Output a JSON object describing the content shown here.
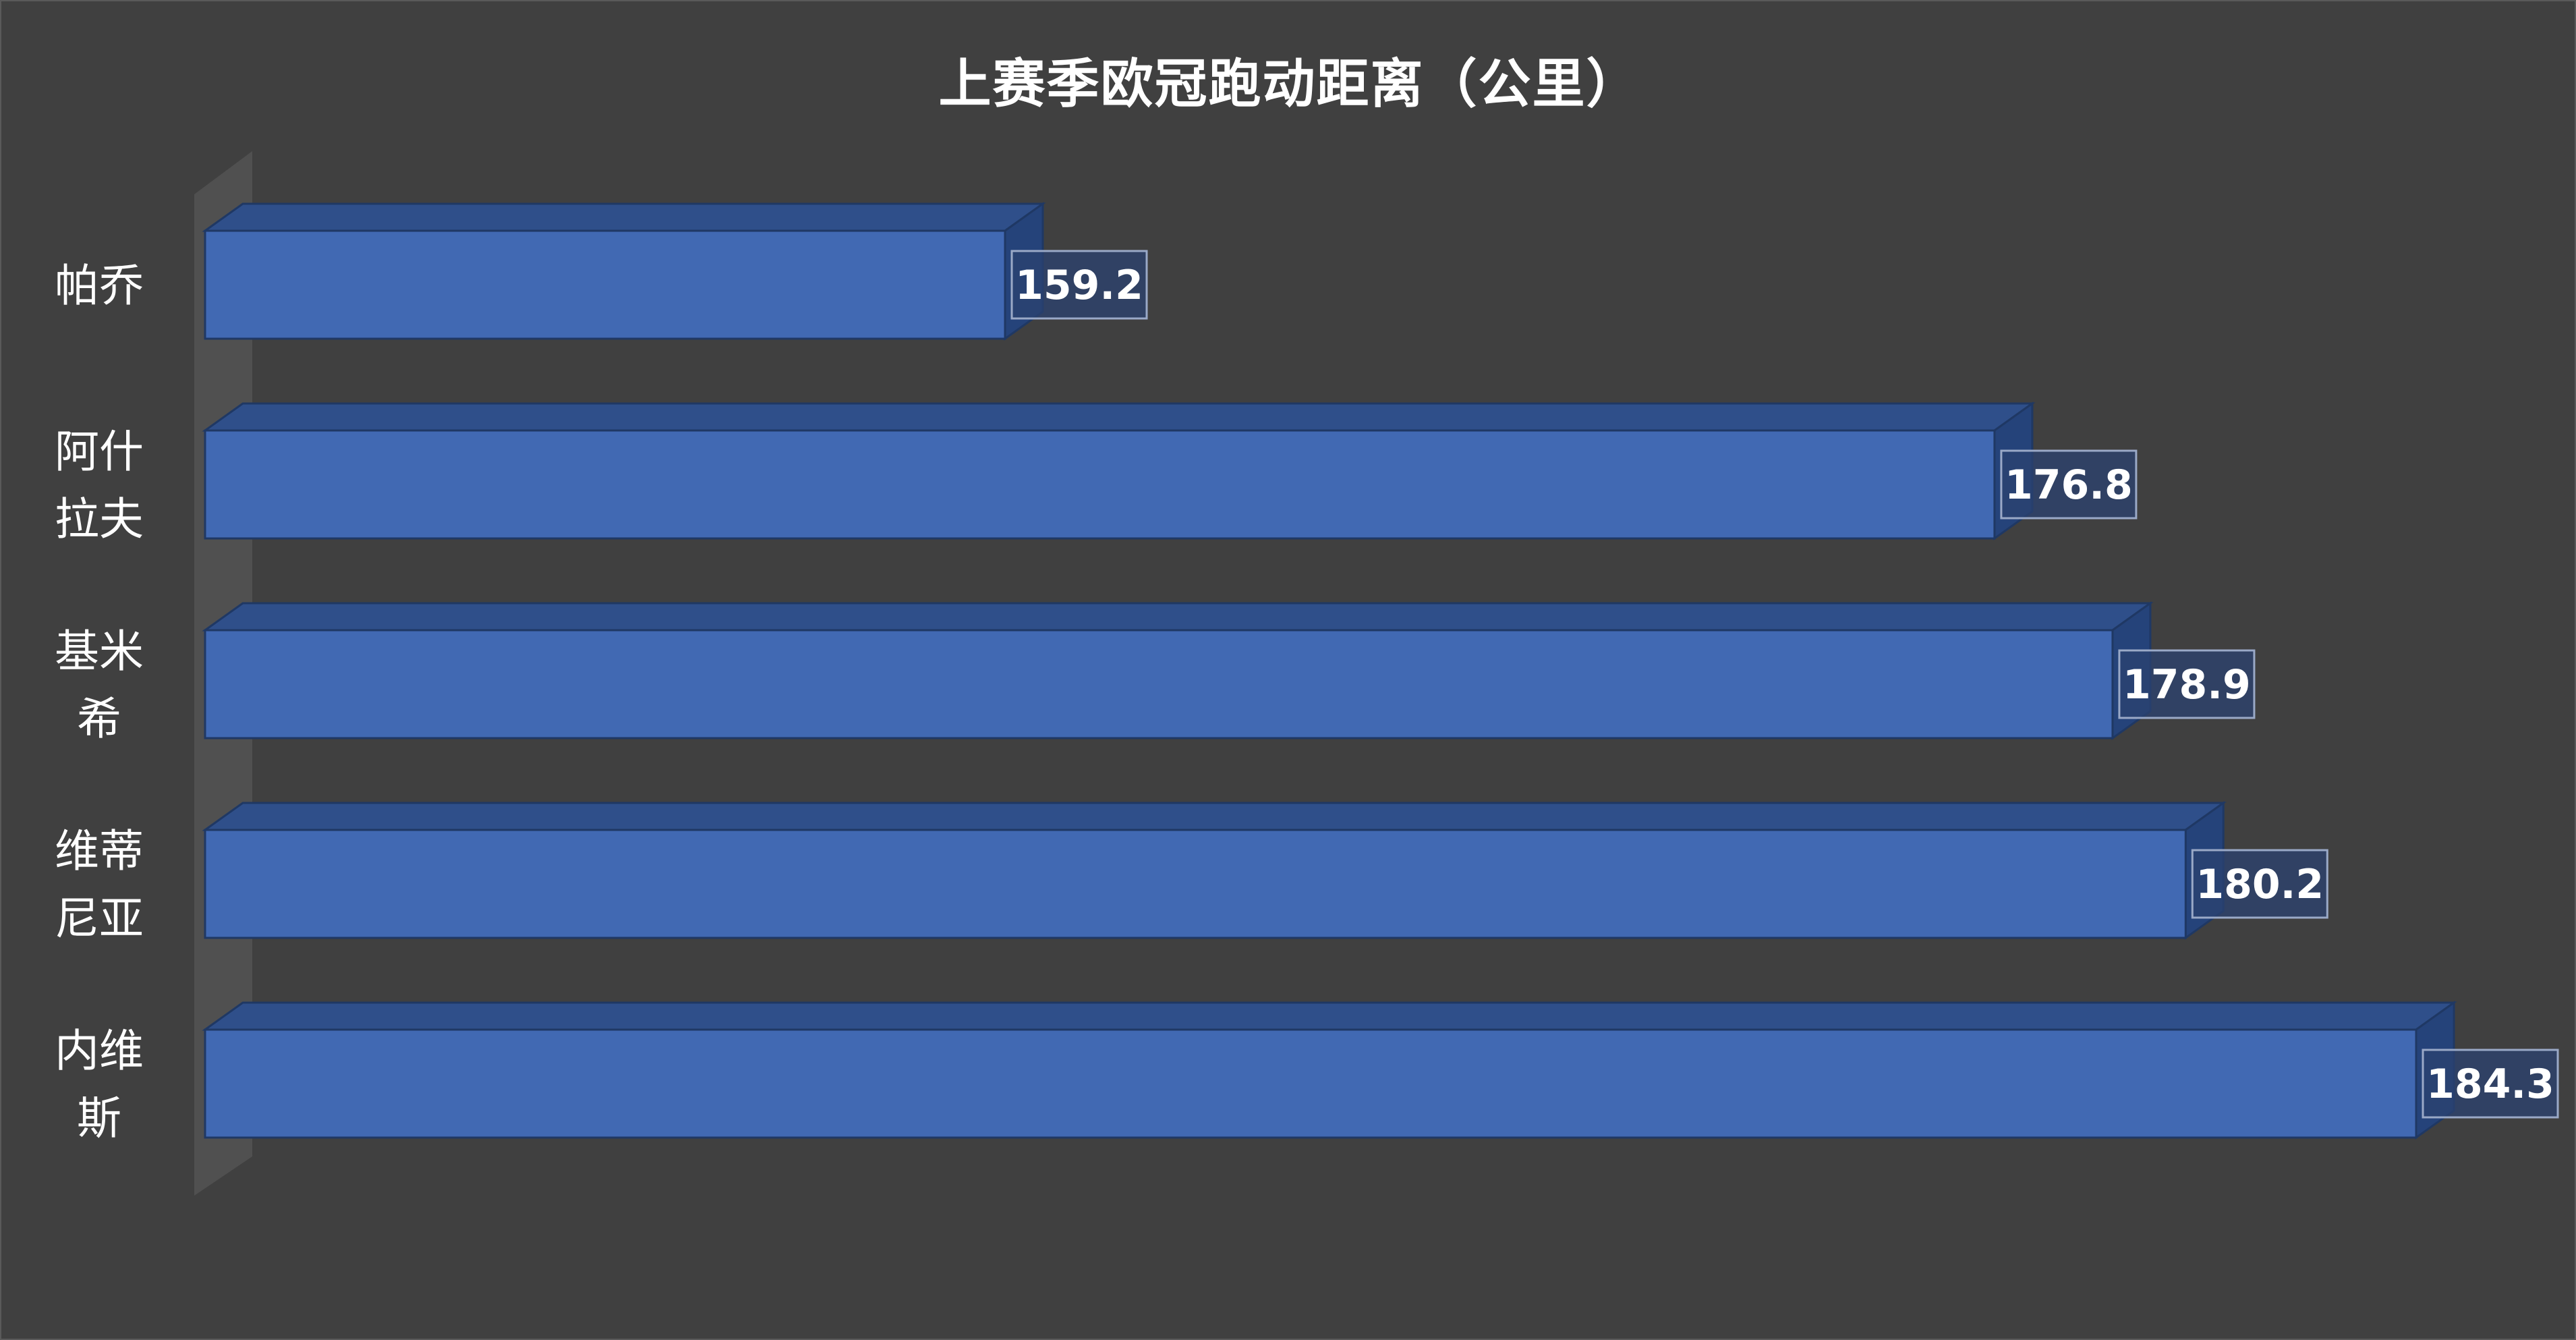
{
  "chart_data": {
    "type": "bar",
    "orientation": "horizontal",
    "style": "3d",
    "title": "上赛季欧冠跑动距离（公里）",
    "categories": [
      [
        "帕乔"
      ],
      [
        "阿什",
        "拉夫"
      ],
      [
        "基米",
        "希"
      ],
      [
        "维蒂",
        "尼亚"
      ],
      [
        "内维",
        "斯"
      ]
    ],
    "values": [
      159.2,
      176.8,
      178.9,
      180.2,
      184.3
    ],
    "data_labels": [
      "159.2",
      "176.8",
      "178.9",
      "180.2",
      "184.3"
    ],
    "xlabel": "",
    "ylabel": "",
    "grid": false,
    "legend": "none",
    "colors": {
      "background": "#404040",
      "bar_front": "#4169b3",
      "bar_top": "#2f4f8a",
      "bar_side": "#25437a",
      "bar_edge": "#1f3864",
      "wall": "#555555",
      "text": "#ffffff",
      "label_box_fill": "#2b4170",
      "label_box_border": "#9aa9c7"
    }
  }
}
